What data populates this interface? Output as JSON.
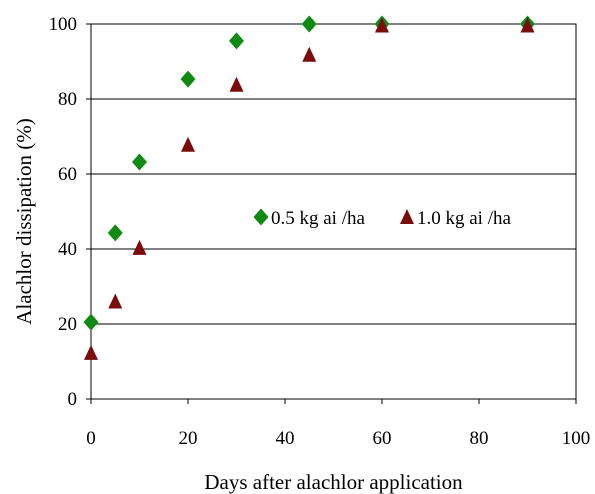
{
  "chart_data": {
    "type": "scatter",
    "xlabel": "Days after alachlor application",
    "ylabel": "Alachlor dissipation (%)",
    "xlim": [
      0,
      100
    ],
    "ylim": [
      0,
      100
    ],
    "x_ticks": [
      0,
      20,
      40,
      60,
      80,
      100
    ],
    "y_ticks": [
      0,
      20,
      40,
      60,
      80,
      100
    ],
    "grid": "horizontal",
    "legend_position": "center-right",
    "series": [
      {
        "name": "0.5 kg ai /ha",
        "marker": "diamond",
        "color": "#0f8a12",
        "points": [
          {
            "x": 0,
            "y": 20.5
          },
          {
            "x": 5,
            "y": 44.3
          },
          {
            "x": 10,
            "y": 63.2
          },
          {
            "x": 20,
            "y": 85.3
          },
          {
            "x": 30,
            "y": 95.5
          },
          {
            "x": 45,
            "y": 100
          },
          {
            "x": 60,
            "y": 100
          },
          {
            "x": 90,
            "y": 100
          }
        ]
      },
      {
        "name": "1.0 kg ai /ha",
        "marker": "triangle",
        "color": "#7a0c0c",
        "points": [
          {
            "x": 0,
            "y": 12.3
          },
          {
            "x": 5,
            "y": 26.0
          },
          {
            "x": 10,
            "y": 40.3
          },
          {
            "x": 20,
            "y": 67.8
          },
          {
            "x": 30,
            "y": 83.8
          },
          {
            "x": 45,
            "y": 91.8
          },
          {
            "x": 60,
            "y": 99.6
          },
          {
            "x": 90,
            "y": 99.6
          }
        ]
      }
    ]
  }
}
